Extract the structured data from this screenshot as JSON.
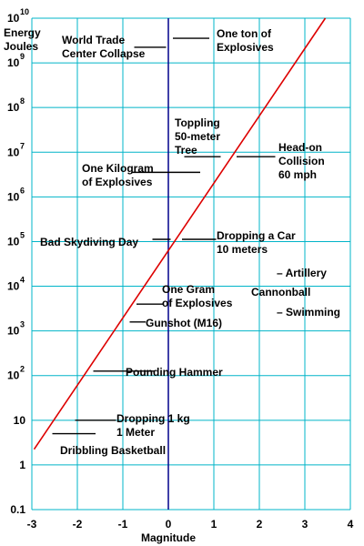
{
  "chart_data": {
    "type": "line",
    "ylabel": "Energy\nJoules",
    "xlabel": "Magnitude",
    "xlim": [
      -3,
      4
    ],
    "ylim_log10": [
      -1,
      10
    ],
    "y_scale": "log",
    "grid": true,
    "colors": {
      "grid": "#00b4c8",
      "line": "#dd0000",
      "axis": "#00008b",
      "marker": "#000000"
    },
    "x_ticks": [
      "-3",
      "-2",
      "-1",
      "0",
      "1",
      "2",
      "3",
      "4"
    ],
    "y_ticks": [
      {
        "exp": 10,
        "base": "10",
        "sup": "10"
      },
      {
        "exp": 9,
        "base": "10",
        "sup": "9"
      },
      {
        "exp": 8,
        "base": "10",
        "sup": "8"
      },
      {
        "exp": 7,
        "base": "10",
        "sup": "7"
      },
      {
        "exp": 6,
        "base": "10",
        "sup": "6"
      },
      {
        "exp": 5,
        "base": "10",
        "sup": "5"
      },
      {
        "exp": 4,
        "base": "10",
        "sup": "4"
      },
      {
        "exp": 3,
        "base": "10",
        "sup": "3"
      },
      {
        "exp": 2,
        "base": "10",
        "sup": "2"
      },
      {
        "exp": 1,
        "base": "10",
        "sup": ""
      },
      {
        "exp": 0,
        "base": "1",
        "sup": ""
      },
      {
        "exp": -1,
        "base": "0.1",
        "sup": ""
      }
    ],
    "series": [
      {
        "x": [
          -2.95,
          3.45
        ],
        "y_log10": [
          0.35,
          10.0
        ]
      }
    ],
    "annotations": [
      {
        "text": [
          "World Trade",
          "Center Collapse"
        ],
        "x": -0.6,
        "y_log10": 9.35,
        "mark": {
          "x1": -0.75,
          "x2": -0.05
        },
        "side": "left"
      },
      {
        "text": [
          "One ton of",
          "Explosives"
        ],
        "x": 0.1,
        "y_log10": 9.55,
        "mark": {
          "x1": 0.1,
          "x2": 0.9
        },
        "side": "right"
      },
      {
        "text": [
          "Toppling",
          "50-meter",
          "Tree"
        ],
        "x": 0.35,
        "y_log10": 6.9,
        "mark": {
          "x1": 0.35,
          "x2": 1.15
        },
        "side": "right"
      },
      {
        "text": [
          "Head-on",
          "Collision",
          "60 mph"
        ],
        "x": 1.5,
        "y_log10": 6.9,
        "mark": {
          "x1": 1.5,
          "x2": 2.35
        },
        "side": "right"
      },
      {
        "text": [
          "One Kilogram",
          "of Explosives"
        ],
        "x": -0.25,
        "y_log10": 6.55,
        "mark": {
          "x1": -0.8,
          "x2": 0.7
        },
        "side": "left"
      },
      {
        "text": [
          "Bad Skydiving Day"
        ],
        "x": -0.35,
        "y_log10": 5.05,
        "mark": {
          "x1": -0.35,
          "x2": 0.05
        },
        "side": "left"
      },
      {
        "text": [
          "Dropping a Car",
          "10 meters"
        ],
        "x": 0.3,
        "y_log10": 5.05,
        "mark": {
          "x1": 0.3,
          "x2": 1.05
        },
        "side": "right"
      },
      {
        "text": [
          "One Gram",
          "of Explosives"
        ],
        "x": -0.7,
        "y_log10": 3.6,
        "mark": {
          "x1": -0.7,
          "x2": -0.1
        },
        "side": "right"
      },
      {
        "text": [
          "Gunshot (M16)"
        ],
        "x": -0.85,
        "y_log10": 3.2,
        "mark": {
          "x1": -0.85,
          "x2": -0.5
        },
        "side": "right"
      },
      {
        "text": [
          "Pounding Hammer"
        ],
        "x": -1.65,
        "y_log10": 2.1,
        "mark": {
          "x1": -1.65,
          "x2": -0.3
        },
        "side": "right"
      },
      {
        "text": [
          "Dropping 1 kg",
          "1 Meter"
        ],
        "x": -2.05,
        "y_log10": 1.0,
        "mark": {
          "x1": -2.05,
          "x2": -1.15
        },
        "side": "right"
      },
      {
        "text": [
          "Dribbling Basketball"
        ],
        "x": -2.55,
        "y_log10": 0.7,
        "mark": {
          "x1": -2.55,
          "x2": -1.6
        },
        "side": "right"
      }
    ],
    "side_notes": [
      {
        "text": "– Artillery",
        "x": 2.4,
        "y_log10": 4.4
      },
      {
        "text": "Cannonball",
        "x": 1.85,
        "y_log10": 4.0
      },
      {
        "text": "– Swimming",
        "x": 2.4,
        "y_log10": 3.55
      }
    ]
  }
}
